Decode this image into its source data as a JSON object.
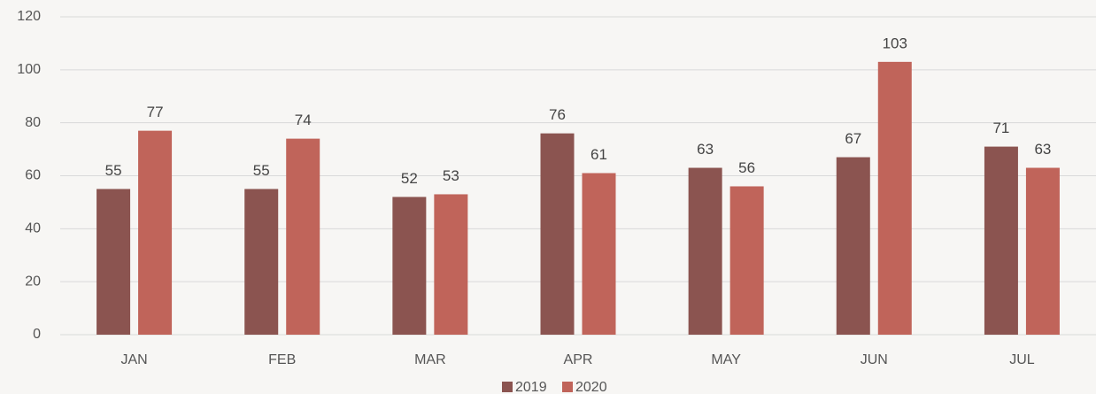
{
  "chart_data": {
    "type": "bar",
    "categories": [
      "JAN",
      "FEB",
      "MAR",
      "APR",
      "MAY",
      "JUN",
      "JUL"
    ],
    "series": [
      {
        "name": "2019",
        "color": "#8b5450",
        "values": [
          55,
          55,
          52,
          76,
          63,
          67,
          71
        ]
      },
      {
        "name": "2020",
        "color": "#c0645a",
        "values": [
          77,
          74,
          53,
          61,
          56,
          103,
          63
        ]
      }
    ],
    "ylim": [
      0,
      120
    ],
    "yticks": [
      0,
      20,
      40,
      60,
      80,
      100,
      120
    ],
    "grid": true,
    "legend": "bottom"
  }
}
